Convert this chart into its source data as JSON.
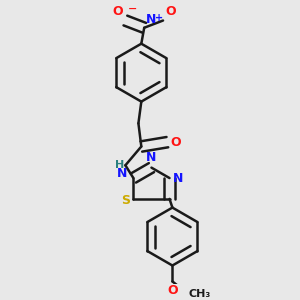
{
  "bg_color": "#e8e8e8",
  "bond_color": "#1a1a1a",
  "bond_width": 1.8,
  "dbo": 0.018,
  "figsize": [
    3.0,
    3.0
  ],
  "dpi": 100,
  "atom_colors": {
    "N": "#1414ff",
    "O": "#ff1414",
    "S": "#ccaa00",
    "H": "#2a8080",
    "C": "#1a1a1a"
  },
  "xlim": [
    0.15,
    0.85
  ],
  "ylim": [
    0.02,
    0.98
  ]
}
